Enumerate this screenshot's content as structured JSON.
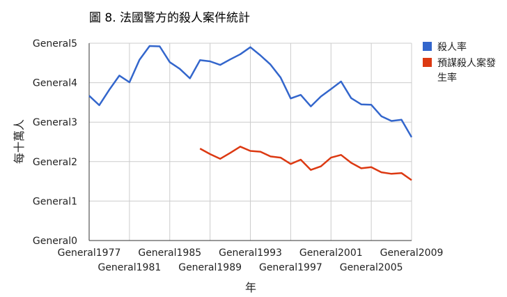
{
  "chart_data": {
    "type": "line",
    "title": "圖 8. 法國警方的殺人案件統計",
    "xlabel": "年",
    "ylabel": "每十萬人",
    "x": [
      1977,
      1978,
      1979,
      1980,
      1981,
      1982,
      1983,
      1984,
      1985,
      1986,
      1987,
      1988,
      1989,
      1990,
      1991,
      1992,
      1993,
      1994,
      1995,
      1996,
      1997,
      1998,
      1999,
      2000,
      2001,
      2002,
      2003,
      2004,
      2005,
      2006,
      2007,
      2008,
      2009
    ],
    "xlim": [
      1977,
      2009
    ],
    "ylim": [
      0,
      5
    ],
    "grid": true,
    "legend_position": "right",
    "x_ticks_row1": [
      "General1977",
      "General1985",
      "General1993",
      "General2001",
      "General2009"
    ],
    "x_ticks_row2": [
      "General1981",
      "General1989",
      "General1997",
      "General2005"
    ],
    "y_ticks": [
      "General0",
      "General1",
      "General2",
      "General3",
      "General4",
      "General5"
    ],
    "series": [
      {
        "name": "殺人率",
        "color": "#3366cc",
        "values": [
          3.67,
          3.43,
          3.82,
          4.18,
          4.01,
          4.58,
          4.93,
          4.92,
          4.52,
          4.35,
          4.11,
          4.57,
          4.54,
          4.45,
          4.59,
          4.72,
          4.9,
          4.69,
          4.46,
          4.13,
          3.6,
          3.69,
          3.4,
          3.65,
          3.84,
          4.03,
          3.61,
          3.45,
          3.44,
          3.15,
          3.03,
          3.06,
          2.62
        ]
      },
      {
        "name": "預謀殺人案發生率",
        "color": "#dc3912",
        "values": [
          null,
          null,
          null,
          null,
          null,
          null,
          null,
          null,
          null,
          null,
          null,
          2.33,
          2.19,
          2.07,
          2.22,
          2.38,
          2.27,
          2.25,
          2.13,
          2.1,
          1.94,
          2.05,
          1.79,
          1.88,
          2.1,
          2.17,
          1.97,
          1.83,
          1.86,
          1.73,
          1.69,
          1.71,
          1.53
        ]
      }
    ]
  }
}
